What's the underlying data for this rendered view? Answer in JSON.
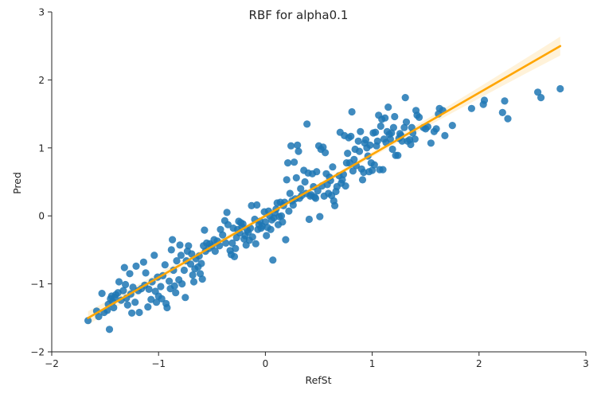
{
  "chart_data": {
    "type": "scatter",
    "title": "RBF for alpha0.1",
    "xlabel": "RefSt",
    "ylabel": "Pred",
    "xlim": [
      -2,
      3
    ],
    "ylim": [
      -2,
      3
    ],
    "xticks": [
      -2,
      -1,
      0,
      1,
      2,
      3
    ],
    "yticks": [
      -2,
      -1,
      0,
      1,
      2,
      3
    ],
    "xtick_labels": [
      "−2",
      "−1",
      "0",
      "1",
      "2",
      "3"
    ],
    "ytick_labels": [
      "−2",
      "−1",
      "0",
      "1",
      "2",
      "3"
    ],
    "grid": false,
    "legend": "none",
    "colors": {
      "points": "#1f77b4",
      "fit_line": "#ffa500",
      "ci_band": "#ffa500",
      "axes": "#262626"
    },
    "regression": {
      "x_start": -1.66,
      "x_end": 2.76,
      "intercept": 0.0,
      "slope": 0.905,
      "ci": 0.05
    },
    "points": [
      [
        -1.66,
        -1.54
      ],
      [
        -1.58,
        -1.4
      ],
      [
        -1.56,
        -1.48
      ],
      [
        -1.53,
        -1.14
      ],
      [
        -1.51,
        -1.42
      ],
      [
        -1.48,
        -1.39
      ],
      [
        -1.47,
        -1.3
      ],
      [
        -1.46,
        -1.67
      ],
      [
        -1.45,
        -1.22
      ],
      [
        -1.44,
        -1.18
      ],
      [
        -1.43,
        -1.26
      ],
      [
        -1.42,
        -1.35
      ],
      [
        -1.41,
        -1.2
      ],
      [
        -1.4,
        -1.16
      ],
      [
        -1.38,
        -1.13
      ],
      [
        -1.37,
        -0.97
      ],
      [
        -1.35,
        -1.24
      ],
      [
        -1.33,
        -1.1
      ],
      [
        -1.32,
        -0.76
      ],
      [
        -1.31,
        -1.01
      ],
      [
        -1.3,
        -1.21
      ],
      [
        -1.29,
        -1.31
      ],
      [
        -1.27,
        -0.85
      ],
      [
        -1.26,
        -1.15
      ],
      [
        -1.25,
        -1.43
      ],
      [
        -1.24,
        -1.05
      ],
      [
        -1.22,
        -1.27
      ],
      [
        -1.21,
        -0.74
      ],
      [
        -1.19,
        -1.1
      ],
      [
        -1.18,
        -1.42
      ],
      [
        -1.16,
        -1.07
      ],
      [
        -1.14,
        -0.68
      ],
      [
        -1.13,
        -1.02
      ],
      [
        -1.12,
        -0.84
      ],
      [
        -1.1,
        -1.34
      ],
      [
        -1.09,
        -1.08
      ],
      [
        -1.07,
        -1.23
      ],
      [
        -1.06,
        -0.97
      ],
      [
        -1.04,
        -0.58
      ],
      [
        -1.03,
        -1.11
      ],
      [
        -1.02,
        -1.27
      ],
      [
        -1.01,
        -0.9
      ],
      [
        -1.0,
        -1.18
      ],
      [
        -0.98,
        -1.04
      ],
      [
        -0.97,
        -1.22
      ],
      [
        -0.96,
        -0.88
      ],
      [
        -0.94,
        -0.72
      ],
      [
        -0.93,
        -1.29
      ],
      [
        -0.92,
        -1.35
      ],
      [
        -0.9,
        -0.96
      ],
      [
        -0.89,
        -1.07
      ],
      [
        -0.88,
        -0.5
      ],
      [
        -0.87,
        -0.35
      ],
      [
        -0.86,
        -0.8
      ],
      [
        -0.85,
        -1.03
      ],
      [
        -0.84,
        -1.13
      ],
      [
        -0.83,
        -0.66
      ],
      [
        -0.81,
        -0.94
      ],
      [
        -0.8,
        -0.43
      ],
      [
        -0.79,
        -0.58
      ],
      [
        -0.78,
        -1.0
      ],
      [
        -0.76,
        -0.8
      ],
      [
        -0.75,
        -1.2
      ],
      [
        -0.74,
        -0.66
      ],
      [
        -0.73,
        -0.52
      ],
      [
        -0.72,
        -0.44
      ],
      [
        -0.7,
        -0.71
      ],
      [
        -0.69,
        -0.56
      ],
      [
        -0.68,
        -0.87
      ],
      [
        -0.67,
        -0.97
      ],
      [
        -0.66,
        -0.78
      ],
      [
        -0.65,
        -0.63
      ],
      [
        -0.63,
        -0.75
      ],
      [
        -0.62,
        -0.59
      ],
      [
        -0.61,
        -0.85
      ],
      [
        -0.6,
        -0.7
      ],
      [
        -0.59,
        -0.93
      ],
      [
        -0.58,
        -0.44
      ],
      [
        -0.57,
        -0.21
      ],
      [
        -0.56,
        -0.52
      ],
      [
        -0.55,
        -0.4
      ],
      [
        -0.53,
        -0.48
      ],
      [
        -0.52,
        -0.41
      ],
      [
        -0.5,
        -0.44
      ],
      [
        -0.48,
        -0.35
      ],
      [
        -0.47,
        -0.52
      ],
      [
        -0.45,
        -0.37
      ],
      [
        -0.43,
        -0.44
      ],
      [
        -0.42,
        -0.2
      ],
      [
        -0.4,
        -0.28
      ],
      [
        -0.38,
        -0.07
      ],
      [
        -0.37,
        -0.4
      ],
      [
        -0.36,
        0.05
      ],
      [
        -0.35,
        -0.13
      ],
      [
        -0.33,
        -0.51
      ],
      [
        -0.32,
        -0.57
      ],
      [
        -0.31,
        -0.4
      ],
      [
        -0.3,
        -0.18
      ],
      [
        -0.29,
        -0.6
      ],
      [
        -0.28,
        -0.48
      ],
      [
        -0.27,
        -0.32
      ],
      [
        -0.26,
        -0.2
      ],
      [
        -0.25,
        -0.08
      ],
      [
        -0.24,
        -0.25
      ],
      [
        -0.23,
        -0.1
      ],
      [
        -0.22,
        -0.16
      ],
      [
        -0.21,
        -0.12
      ],
      [
        -0.2,
        -0.34
      ],
      [
        -0.19,
        -0.29
      ],
      [
        -0.18,
        -0.43
      ],
      [
        -0.17,
        -0.21
      ],
      [
        -0.16,
        -0.24
      ],
      [
        -0.15,
        -0.36
      ],
      [
        -0.14,
        -0.18
      ],
      [
        -0.13,
        0.15
      ],
      [
        -0.12,
        -0.31
      ],
      [
        -0.1,
        -0.05
      ],
      [
        -0.09,
        -0.41
      ],
      [
        -0.08,
        0.16
      ],
      [
        -0.07,
        -0.2
      ],
      [
        -0.06,
        -0.13
      ],
      [
        -0.05,
        -0.08
      ],
      [
        -0.04,
        -0.18
      ],
      [
        -0.03,
        -0.15
      ],
      [
        -0.01,
        0.06
      ],
      [
        0.0,
        -0.09
      ],
      [
        0.01,
        -0.29
      ],
      [
        0.02,
        -0.17
      ],
      [
        0.03,
        0.07
      ],
      [
        0.04,
        0.0
      ],
      [
        0.05,
        -0.2
      ],
      [
        0.06,
        -0.06
      ],
      [
        0.07,
        -0.65
      ],
      [
        0.08,
        -0.03
      ],
      [
        0.09,
        0.04
      ],
      [
        0.1,
        0.1
      ],
      [
        0.11,
        0.19
      ],
      [
        0.12,
        -0.13
      ],
      [
        0.13,
        -0.01
      ],
      [
        0.14,
        0.2
      ],
      [
        0.15,
        0.0
      ],
      [
        0.16,
        -0.09
      ],
      [
        0.17,
        0.15
      ],
      [
        0.18,
        0.2
      ],
      [
        0.19,
        -0.35
      ],
      [
        0.2,
        0.53
      ],
      [
        0.21,
        0.78
      ],
      [
        0.22,
        0.07
      ],
      [
        0.23,
        0.33
      ],
      [
        0.24,
        1.03
      ],
      [
        0.25,
        0.22
      ],
      [
        0.26,
        0.16
      ],
      [
        0.27,
        0.79
      ],
      [
        0.28,
        0.25
      ],
      [
        0.29,
        0.56
      ],
      [
        0.3,
        1.04
      ],
      [
        0.31,
        0.95
      ],
      [
        0.32,
        0.26
      ],
      [
        0.33,
        0.4
      ],
      [
        0.34,
        0.3
      ],
      [
        0.36,
        0.67
      ],
      [
        0.37,
        0.5
      ],
      [
        0.38,
        0.33
      ],
      [
        0.39,
        1.35
      ],
      [
        0.4,
        0.63
      ],
      [
        0.41,
        -0.05
      ],
      [
        0.42,
        0.29
      ],
      [
        0.43,
        0.31
      ],
      [
        0.44,
        0.62
      ],
      [
        0.45,
        0.43
      ],
      [
        0.46,
        0.28
      ],
      [
        0.47,
        0.26
      ],
      [
        0.48,
        0.65
      ],
      [
        0.49,
        0.37
      ],
      [
        0.5,
        1.03
      ],
      [
        0.51,
        -0.01
      ],
      [
        0.52,
        0.98
      ],
      [
        0.53,
        0.44
      ],
      [
        0.54,
        1.01
      ],
      [
        0.55,
        0.29
      ],
      [
        0.56,
        0.93
      ],
      [
        0.57,
        0.62
      ],
      [
        0.58,
        0.46
      ],
      [
        0.59,
        0.33
      ],
      [
        0.6,
        0.57
      ],
      [
        0.61,
        0.52
      ],
      [
        0.62,
        0.3
      ],
      [
        0.63,
        0.72
      ],
      [
        0.64,
        0.22
      ],
      [
        0.65,
        0.15
      ],
      [
        0.66,
        0.36
      ],
      [
        0.67,
        0.43
      ],
      [
        0.69,
        0.59
      ],
      [
        0.7,
        1.23
      ],
      [
        0.71,
        0.48
      ],
      [
        0.72,
        0.53
      ],
      [
        0.73,
        0.61
      ],
      [
        0.74,
        1.18
      ],
      [
        0.75,
        0.44
      ],
      [
        0.76,
        0.78
      ],
      [
        0.77,
        0.92
      ],
      [
        0.78,
        1.15
      ],
      [
        0.79,
        0.78
      ],
      [
        0.8,
        1.17
      ],
      [
        0.81,
        1.53
      ],
      [
        0.82,
        0.66
      ],
      [
        0.83,
        0.83
      ],
      [
        0.84,
        0.98
      ],
      [
        0.85,
        0.74
      ],
      [
        0.87,
        1.1
      ],
      [
        0.88,
        0.95
      ],
      [
        0.89,
        1.24
      ],
      [
        0.9,
        0.69
      ],
      [
        0.91,
        0.53
      ],
      [
        0.92,
        0.64
      ],
      [
        0.93,
        1.07
      ],
      [
        0.94,
        1.12
      ],
      [
        0.95,
        1.0
      ],
      [
        0.96,
        0.88
      ],
      [
        0.97,
        0.65
      ],
      [
        0.98,
        1.04
      ],
      [
        0.99,
        0.78
      ],
      [
        1.0,
        0.67
      ],
      [
        1.01,
        1.22
      ],
      [
        1.02,
        0.75
      ],
      [
        1.03,
        1.23
      ],
      [
        1.04,
        1.03
      ],
      [
        1.05,
        1.1
      ],
      [
        1.06,
        1.48
      ],
      [
        1.07,
        0.68
      ],
      [
        1.08,
        1.32
      ],
      [
        1.09,
        1.42
      ],
      [
        1.1,
        0.68
      ],
      [
        1.11,
        1.13
      ],
      [
        1.12,
        1.44
      ],
      [
        1.13,
        1.08
      ],
      [
        1.14,
        1.24
      ],
      [
        1.15,
        1.6
      ],
      [
        1.16,
        1.2
      ],
      [
        1.17,
        1.13
      ],
      [
        1.18,
        1.22
      ],
      [
        1.19,
        0.98
      ],
      [
        1.2,
        1.3
      ],
      [
        1.21,
        1.46
      ],
      [
        1.22,
        0.89
      ],
      [
        1.24,
        0.89
      ],
      [
        1.25,
        1.14
      ],
      [
        1.26,
        1.21
      ],
      [
        1.27,
        1.18
      ],
      [
        1.28,
        1.1
      ],
      [
        1.3,
        1.3
      ],
      [
        1.31,
        1.74
      ],
      [
        1.32,
        1.38
      ],
      [
        1.33,
        1.1
      ],
      [
        1.35,
        1.12
      ],
      [
        1.36,
        1.05
      ],
      [
        1.37,
        1.3
      ],
      [
        1.38,
        1.22
      ],
      [
        1.4,
        1.13
      ],
      [
        1.41,
        1.55
      ],
      [
        1.42,
        1.48
      ],
      [
        1.44,
        1.45
      ],
      [
        1.48,
        1.3
      ],
      [
        1.5,
        1.28
      ],
      [
        1.52,
        1.31
      ],
      [
        1.55,
        1.07
      ],
      [
        1.58,
        1.24
      ],
      [
        1.6,
        1.28
      ],
      [
        1.62,
        1.5
      ],
      [
        1.63,
        1.58
      ],
      [
        1.66,
        1.55
      ],
      [
        1.68,
        1.18
      ],
      [
        1.75,
        1.33
      ],
      [
        1.93,
        1.58
      ],
      [
        2.04,
        1.64
      ],
      [
        2.05,
        1.7
      ],
      [
        2.22,
        1.52
      ],
      [
        2.24,
        1.69
      ],
      [
        2.27,
        1.43
      ],
      [
        2.55,
        1.82
      ],
      [
        2.58,
        1.74
      ],
      [
        2.76,
        1.87
      ]
    ]
  }
}
